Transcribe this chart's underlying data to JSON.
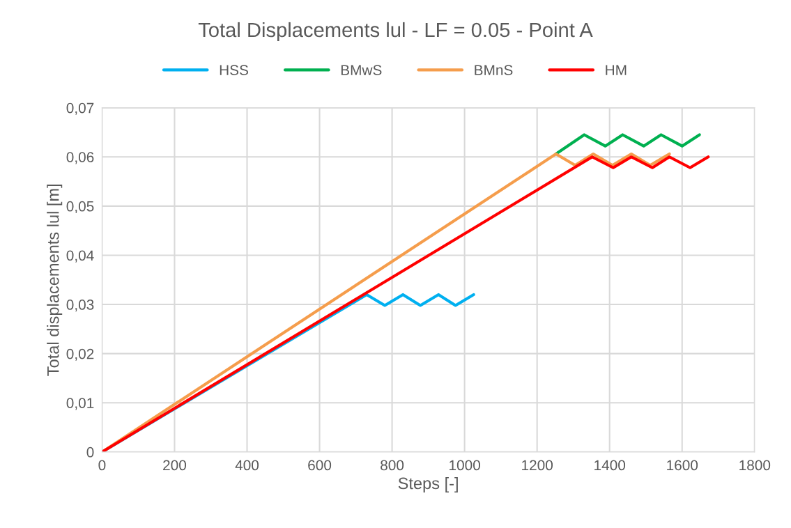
{
  "chart_data": {
    "type": "line",
    "title": "Total Displacements lul - LF = 0.05 - Point A",
    "xlabel": "Steps [-]",
    "ylabel": "Total displacements lul [m]",
    "series": [
      {
        "name": "HSS",
        "color": "#00b0f0",
        "x": [
          0,
          730,
          780,
          830,
          878,
          928,
          975,
          1025
        ],
        "values": [
          0,
          0.032,
          0.0298,
          0.032,
          0.0298,
          0.032,
          0.0298,
          0.032
        ]
      },
      {
        "name": "BMwS",
        "color": "#00b050",
        "x": [
          1252,
          1330,
          1388,
          1436,
          1494,
          1542,
          1600,
          1648
        ],
        "values": [
          0.0606,
          0.0645,
          0.0622,
          0.0645,
          0.0622,
          0.0645,
          0.0622,
          0.0645
        ]
      },
      {
        "name": "BMnS",
        "color": "#f59d4c",
        "x": [
          0,
          1252,
          1305,
          1355,
          1408,
          1460,
          1512,
          1565
        ],
        "values": [
          0,
          0.0606,
          0.0583,
          0.0606,
          0.0583,
          0.0606,
          0.0583,
          0.0606
        ]
      },
      {
        "name": "HM",
        "color": "#ff0000",
        "x": [
          0,
          1352,
          1410,
          1460,
          1518,
          1565,
          1622,
          1672
        ],
        "values": [
          0,
          0.06,
          0.0578,
          0.06,
          0.0578,
          0.06,
          0.0578,
          0.06
        ]
      }
    ],
    "xlim": [
      0,
      1800
    ],
    "xticks": [
      0,
      200,
      400,
      600,
      800,
      1000,
      1200,
      1400,
      1600,
      1800
    ],
    "ylim": [
      0,
      0.07
    ],
    "yticks": [
      0,
      {
        "value": 0.01,
        "label": "0,01"
      },
      {
        "value": 0.02,
        "label": "0,02"
      },
      {
        "value": 0.03,
        "label": "0,03"
      },
      {
        "value": 0.04,
        "label": "0,04"
      },
      {
        "value": 0.05,
        "label": "0,05"
      },
      {
        "value": 0.06,
        "label": "0,06"
      },
      {
        "value": 0.07,
        "label": "0,07"
      }
    ],
    "grid": true,
    "legend": "top",
    "marker": "none",
    "line_style": "solid"
  }
}
